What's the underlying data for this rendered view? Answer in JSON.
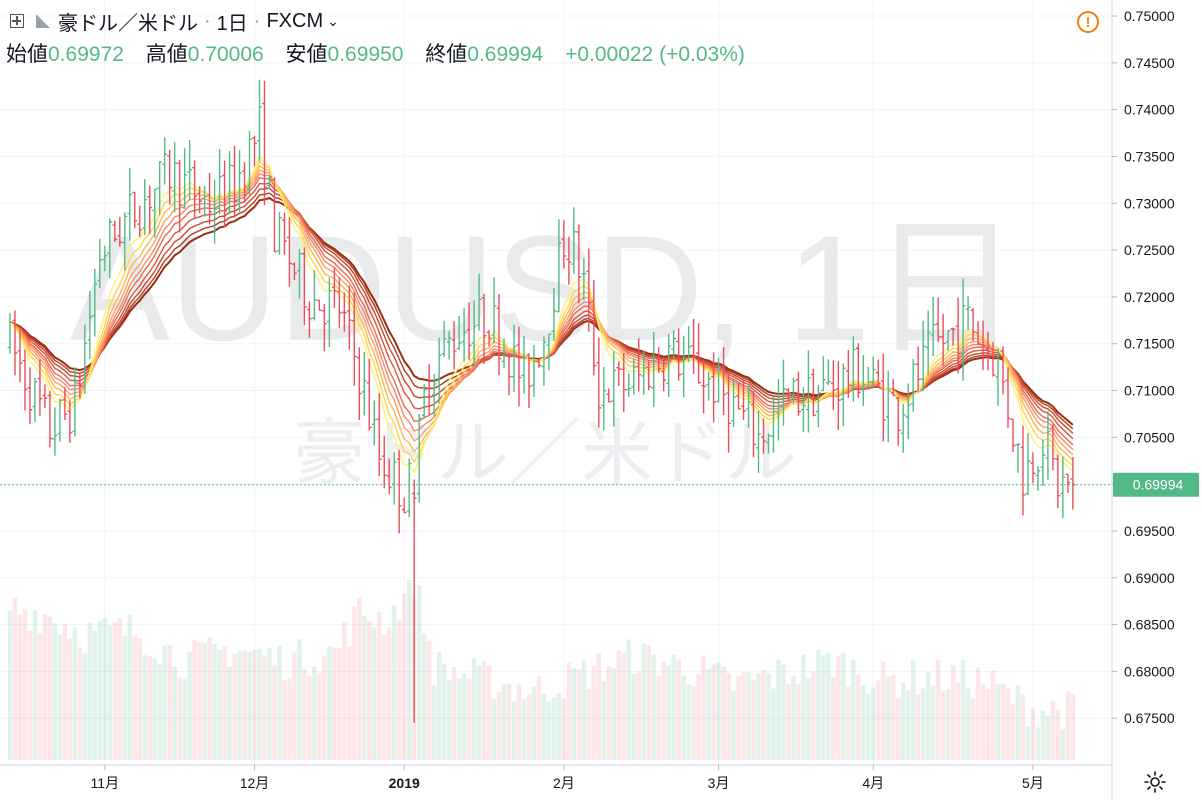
{
  "header": {
    "symbol": "豪ドル／米ドル",
    "interval": "1日",
    "exchange": "FXCM",
    "ohlc": [
      {
        "label": "始値",
        "value": "0.69972"
      },
      {
        "label": "高値",
        "value": "0.70006"
      },
      {
        "label": "安値",
        "value": "0.69950"
      },
      {
        "label": "終値",
        "value": "0.69994"
      }
    ],
    "change": "+0.00022 (+0.03%)"
  },
  "watermark": {
    "line1": "AUDUSD, 1日",
    "line2": "豪ドル／米ドル"
  },
  "colors": {
    "up": "#53b987",
    "down": "#eb4d5c",
    "grid": "#f0f3fa",
    "axis_text": "#131722",
    "price_label_bg": "#53b987",
    "ma_gradient": [
      "#fff176",
      "#ffd54f",
      "#ffb74d",
      "#ff9e6d",
      "#f98866",
      "#e86b50",
      "#d9553c",
      "#c64a2e",
      "#b13d22",
      "#9a2e14"
    ]
  },
  "icons": {
    "add": "plus-square-icon",
    "flag": "flag-icon",
    "alert": "alert-circle-icon",
    "settings": "gear-icon"
  },
  "chart_data": {
    "type": "candlestick",
    "title": "AUDUSD, 1日",
    "last_price": 0.69994,
    "last_price_label": "0.69994",
    "y_axis": {
      "range": [
        0.67,
        0.7515
      ],
      "ticks": [
        "0.75000",
        "0.74500",
        "0.74000",
        "0.73500",
        "0.73000",
        "0.72500",
        "0.72000",
        "0.71500",
        "0.71000",
        "0.70500",
        "0.70000",
        "0.69500",
        "0.69000",
        "0.68500",
        "0.68000",
        "0.67500"
      ]
    },
    "x_axis": {
      "ticks": [
        {
          "label": "11月",
          "index": 19
        },
        {
          "label": "12月",
          "index": 49
        },
        {
          "label": "2019",
          "index": 79,
          "bold": true
        },
        {
          "label": "2月",
          "index": 111
        },
        {
          "label": "3月",
          "index": 142
        },
        {
          "label": "4月",
          "index": 173
        },
        {
          "label": "5月",
          "index": 205
        }
      ]
    },
    "grid": true,
    "ohlc_keyframes": [
      [
        0,
        0.715
      ],
      [
        8,
        0.7058
      ],
      [
        13,
        0.7085
      ],
      [
        18,
        0.7245
      ],
      [
        24,
        0.7288
      ],
      [
        32,
        0.7332
      ],
      [
        40,
        0.73
      ],
      [
        45,
        0.732
      ],
      [
        50,
        0.738
      ],
      [
        53,
        0.727
      ],
      [
        60,
        0.72
      ],
      [
        66,
        0.7188
      ],
      [
        70,
        0.712
      ],
      [
        74,
        0.703
      ],
      [
        79,
        0.699
      ],
      [
        80,
        0.7
      ],
      [
        84,
        0.712
      ],
      [
        90,
        0.7165
      ],
      [
        96,
        0.718
      ],
      [
        103,
        0.711
      ],
      [
        107,
        0.716
      ],
      [
        111,
        0.726
      ],
      [
        113,
        0.725
      ],
      [
        115,
        0.7215
      ],
      [
        118,
        0.71
      ],
      [
        125,
        0.711
      ],
      [
        132,
        0.714
      ],
      [
        138,
        0.712
      ],
      [
        144,
        0.709
      ],
      [
        150,
        0.705
      ],
      [
        156,
        0.709
      ],
      [
        163,
        0.71
      ],
      [
        170,
        0.712
      ],
      [
        178,
        0.708
      ],
      [
        185,
        0.7145
      ],
      [
        192,
        0.7175
      ],
      [
        198,
        0.713
      ],
      [
        203,
        0.701
      ],
      [
        207,
        0.705
      ],
      [
        210,
        0.7
      ],
      [
        213,
        0.69994
      ]
    ],
    "outlier_candles": [
      {
        "index": 81,
        "open": 0.699,
        "high": 0.7005,
        "low": 0.6745,
        "close": 0.6985
      },
      {
        "index": 82,
        "open": 0.699,
        "high": 0.7075,
        "low": 0.698,
        "close": 0.707
      }
    ],
    "moving_averages": {
      "count": 10,
      "type": "EMA ribbon"
    },
    "volume_profile_keyframes": [
      [
        0,
        0.85
      ],
      [
        8,
        0.8
      ],
      [
        15,
        0.7
      ],
      [
        25,
        0.72
      ],
      [
        35,
        0.55
      ],
      [
        45,
        0.62
      ],
      [
        55,
        0.55
      ],
      [
        65,
        0.6
      ],
      [
        70,
        0.82
      ],
      [
        76,
        0.78
      ],
      [
        81,
        1.0
      ],
      [
        85,
        0.52
      ],
      [
        95,
        0.45
      ],
      [
        105,
        0.38
      ],
      [
        115,
        0.48
      ],
      [
        125,
        0.58
      ],
      [
        135,
        0.52
      ],
      [
        145,
        0.42
      ],
      [
        155,
        0.48
      ],
      [
        165,
        0.55
      ],
      [
        175,
        0.44
      ],
      [
        185,
        0.46
      ],
      [
        195,
        0.44
      ],
      [
        205,
        0.28
      ],
      [
        213,
        0.28
      ]
    ],
    "bar_count": 214
  }
}
